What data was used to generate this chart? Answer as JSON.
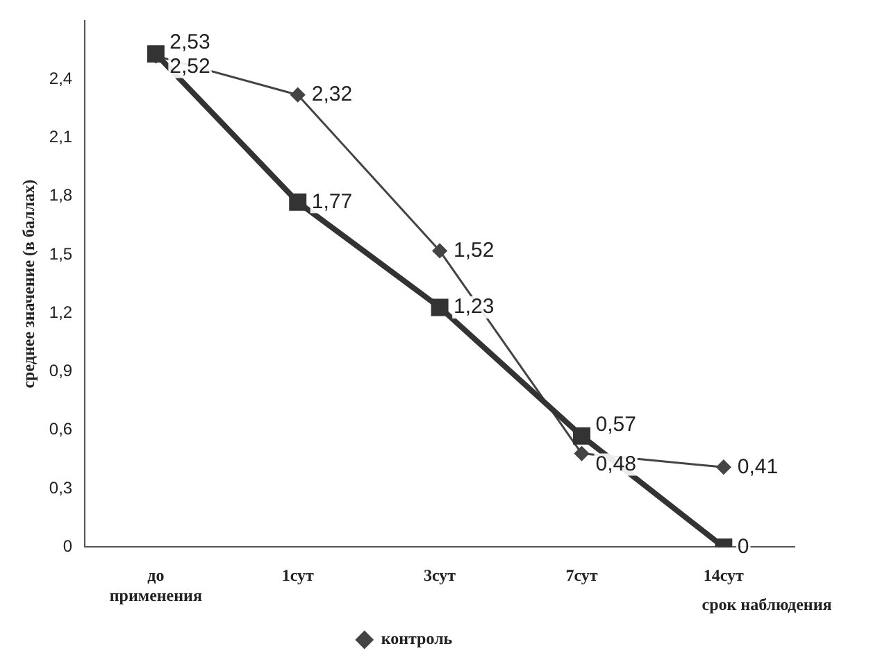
{
  "chart_data": {
    "type": "line",
    "ylabel": "среднее значение (в баллах)",
    "xlabel": "срок наблюдения",
    "categories": [
      "до\nприменения",
      "1сут",
      "3сут",
      "7сут",
      "14сут"
    ],
    "ylim": [
      0,
      2.7
    ],
    "yticks": [
      {
        "value": 0,
        "label": "0"
      },
      {
        "value": 0.3,
        "label": "0,3"
      },
      {
        "value": 0.6,
        "label": "0,6"
      },
      {
        "value": 0.9,
        "label": "0,9"
      },
      {
        "value": 1.2,
        "label": "1,2"
      },
      {
        "value": 1.5,
        "label": "1,5"
      },
      {
        "value": 1.8,
        "label": "1,8"
      },
      {
        "value": 2.1,
        "label": "2,1"
      },
      {
        "value": 2.4,
        "label": "2,4"
      }
    ],
    "grid": false,
    "legend": "bottom",
    "series": [
      {
        "color": "#333333",
        "marker": "square",
        "values": [
          2.53,
          1.77,
          1.23,
          0.57,
          0
        ],
        "value_labels": [
          "2,53",
          "1,77",
          "1,23",
          "0,57",
          "0"
        ]
      },
      {
        "name": "контроль",
        "color": "#444444",
        "marker": "diamond",
        "values": [
          2.52,
          2.32,
          1.52,
          0.48,
          0.41
        ],
        "value_labels": [
          "2,52",
          "2,32",
          "1,52",
          "0,48",
          "0,41"
        ]
      }
    ]
  }
}
